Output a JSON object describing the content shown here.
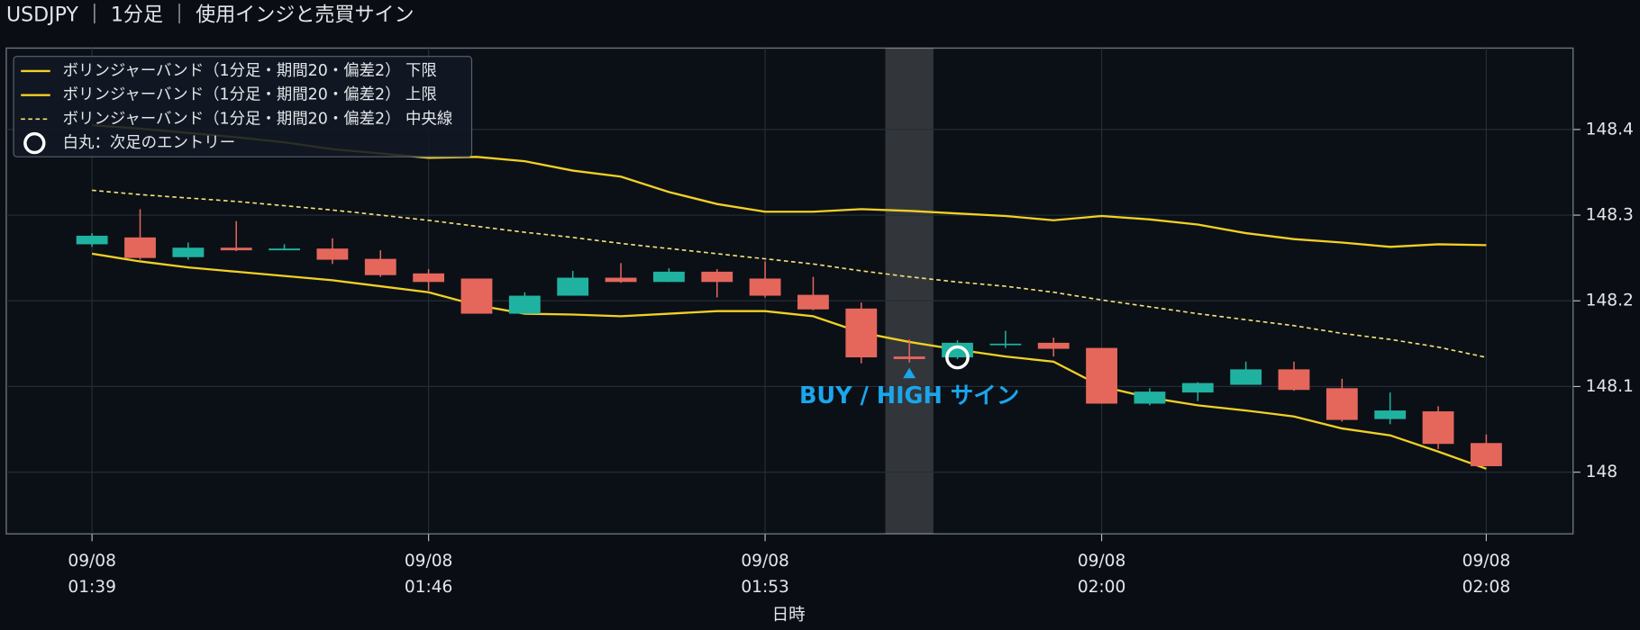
{
  "chart_data": {
    "type": "candlestick",
    "title": "USDJPY ｜ 1分足 ｜ 使用インジと売買サイン",
    "x_label": "日時",
    "x": [
      "09/08 01:39",
      "09/08 01:40",
      "09/08 01:41",
      "09/08 01:42",
      "09/08 01:43",
      "09/08 01:44",
      "09/08 01:45",
      "09/08 01:46",
      "09/08 01:47",
      "09/08 01:48",
      "09/08 01:49",
      "09/08 01:50",
      "09/08 01:51",
      "09/08 01:52",
      "09/08 01:53",
      "09/08 01:54",
      "09/08 01:55",
      "09/08 01:56",
      "09/08 01:57",
      "09/08 01:58",
      "09/08 01:59",
      "09/08 02:00",
      "09/08 02:01",
      "09/08 02:02",
      "09/08 02:03",
      "09/08 02:04",
      "09/08 02:05",
      "09/08 02:06",
      "09/08 02:07",
      "09/08 02:08"
    ],
    "xticks": [
      {
        "value": "09/08 01:39",
        "label": [
          "09/08",
          "01:39"
        ]
      },
      {
        "value": "09/08 01:46",
        "label": [
          "09/08",
          "01:46"
        ]
      },
      {
        "value": "09/08 01:53",
        "label": [
          "09/08",
          "01:53"
        ]
      },
      {
        "value": "09/08 02:00",
        "label": [
          "09/08",
          "02:00"
        ]
      },
      {
        "value": "09/08 02:08",
        "label": [
          "09/08",
          "02:08"
        ]
      }
    ],
    "ylim": [
      147.928,
      148.495
    ],
    "yticks": [
      148.0,
      148.1,
      148.2,
      148.3,
      148.4
    ],
    "grid": true,
    "up_color": "#20b2a0",
    "down_color": "#e5675c",
    "open": [
      148.266,
      148.274,
      148.251,
      148.262,
      148.259,
      148.261,
      148.249,
      148.232,
      148.226,
      148.185,
      148.206,
      148.227,
      148.222,
      148.234,
      148.226,
      148.207,
      148.191,
      148.135,
      148.134,
      148.149,
      148.151,
      148.145,
      148.08,
      148.093,
      148.102,
      148.12,
      148.098,
      148.062,
      148.071,
      148.034
    ],
    "high": [
      148.279,
      148.307,
      148.268,
      148.293,
      148.266,
      148.273,
      148.259,
      148.237,
      148.226,
      148.21,
      148.235,
      148.244,
      148.238,
      148.237,
      148.246,
      148.228,
      148.198,
      148.155,
      148.154,
      148.165,
      148.157,
      148.145,
      148.098,
      148.105,
      148.129,
      148.129,
      148.109,
      148.093,
      148.077,
      148.044
    ],
    "low": [
      148.263,
      148.248,
      148.248,
      148.258,
      148.259,
      148.243,
      148.228,
      148.212,
      148.185,
      148.185,
      148.206,
      148.221,
      148.222,
      148.204,
      148.204,
      148.189,
      148.127,
      148.128,
      148.132,
      148.145,
      148.135,
      148.08,
      148.078,
      148.083,
      148.102,
      148.095,
      148.059,
      148.056,
      148.027,
      148.007
    ],
    "close": [
      148.276,
      148.25,
      148.262,
      148.259,
      148.261,
      148.248,
      148.23,
      148.222,
      148.185,
      148.206,
      148.227,
      148.222,
      148.234,
      148.222,
      148.206,
      148.19,
      148.134,
      148.132,
      148.151,
      148.15,
      148.144,
      148.08,
      148.094,
      148.104,
      148.12,
      148.096,
      148.061,
      148.072,
      148.033,
      148.007
    ],
    "series": [
      {
        "name": "ボリンジャーバンド（1分足・期間20・偏差2） 下限",
        "color": "#f2d024",
        "dashed": false,
        "values": [
          148.255,
          148.246,
          148.239,
          148.234,
          148.229,
          148.224,
          148.217,
          148.21,
          148.195,
          148.185,
          148.184,
          148.182,
          148.185,
          148.188,
          148.188,
          148.182,
          148.163,
          148.152,
          148.143,
          148.135,
          148.129,
          148.1,
          148.087,
          148.078,
          148.072,
          148.065,
          148.051,
          148.043,
          148.024,
          148.004
        ]
      },
      {
        "name": "ボリンジャーバンド（1分足・期間20・偏差2） 上限",
        "color": "#f2d024",
        "dashed": false,
        "values": [
          148.405,
          148.401,
          148.396,
          148.391,
          148.385,
          148.377,
          148.372,
          148.367,
          148.368,
          148.363,
          148.352,
          148.345,
          148.327,
          148.313,
          148.304,
          148.304,
          148.307,
          148.305,
          148.302,
          148.299,
          148.294,
          148.299,
          148.295,
          148.289,
          148.279,
          148.272,
          148.268,
          148.263,
          148.266,
          148.265
        ]
      },
      {
        "name": "ボリンジャーバンド（1分足・期間20・偏差2） 中央線",
        "color": "#f5e27a",
        "dashed": true,
        "values": [
          148.329,
          148.324,
          148.32,
          148.316,
          148.311,
          148.306,
          148.3,
          148.294,
          148.287,
          148.28,
          148.274,
          148.267,
          148.261,
          148.255,
          148.249,
          148.243,
          148.235,
          148.228,
          148.222,
          148.217,
          148.21,
          148.201,
          148.193,
          148.185,
          148.178,
          148.171,
          148.162,
          148.155,
          148.146,
          148.134
        ]
      }
    ],
    "entry": {
      "name": "白丸：次足のエントリー",
      "x": "09/08 01:57",
      "y": 148.134,
      "color": "#ffffff"
    },
    "signal": {
      "text": "BUY / HIGH サイン",
      "x": "09/08 01:56",
      "color": "#1aa6ec"
    },
    "highlight": {
      "x": "09/08 01:56"
    },
    "legend": "upper left"
  }
}
